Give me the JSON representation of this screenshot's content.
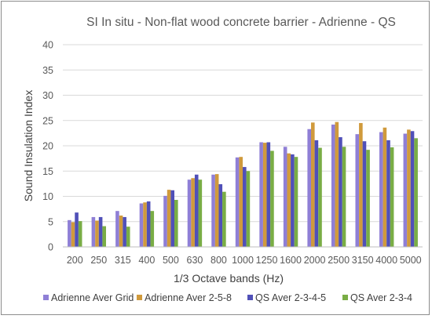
{
  "chart_data": {
    "type": "bar",
    "title": "SI In situ - Non-flat wood concrete barrier - Adrienne - QS",
    "xlabel": "1/3 Octave bands (Hz)",
    "ylabel": "Sound Insulation Index",
    "ylim": [
      0,
      40
    ],
    "yticks": [
      0,
      5,
      10,
      15,
      20,
      25,
      30,
      35,
      40
    ],
    "grid": true,
    "legend_position": "bottom",
    "categories": [
      "200",
      "250",
      "315",
      "400",
      "500",
      "630",
      "800",
      "1000",
      "1250",
      "1600",
      "2000",
      "2500",
      "3150",
      "4000",
      "5000"
    ],
    "series": [
      {
        "name": "Adrienne Aver Grid",
        "color": "#8f7fd6",
        "values": [
          5.3,
          5.9,
          7.1,
          8.6,
          10.1,
          13.3,
          14.3,
          17.7,
          20.7,
          19.8,
          23.3,
          24.2,
          22.3,
          22.7,
          22.4
        ]
      },
      {
        "name": "Adrienne Aver 2-5-8",
        "color": "#d09a3c",
        "values": [
          4.9,
          5.2,
          6.2,
          8.8,
          11.3,
          13.6,
          14.4,
          17.8,
          20.6,
          18.5,
          24.6,
          24.7,
          24.5,
          23.6,
          23.2
        ]
      },
      {
        "name": "QS Aver 2-3-4-5",
        "color": "#5050b8",
        "values": [
          6.8,
          5.9,
          5.9,
          9.0,
          11.2,
          14.3,
          12.4,
          15.8,
          20.7,
          18.3,
          21.1,
          21.7,
          20.9,
          21.1,
          22.9
        ]
      },
      {
        "name": "QS Aver 2-3-4",
        "color": "#79ad45",
        "values": [
          5.1,
          4.1,
          4.0,
          7.1,
          9.3,
          13.3,
          10.9,
          15.0,
          19.0,
          17.8,
          19.6,
          19.8,
          19.2,
          19.7,
          21.5
        ]
      }
    ]
  }
}
